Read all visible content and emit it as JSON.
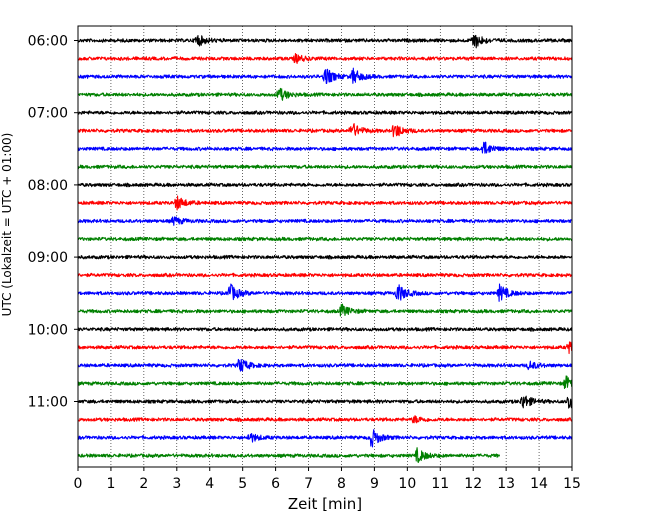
{
  "chart_data": {
    "type": "line",
    "title": "",
    "xlabel": "Zeit  [min]",
    "ylabel": "UTC (Lokalzeit = UTC + 01:00)",
    "xlim": [
      0,
      15
    ],
    "x_ticks": [
      "0",
      "1",
      "2",
      "3",
      "4",
      "5",
      "6",
      "7",
      "8",
      "9",
      "10",
      "11",
      "12",
      "13",
      "14",
      "15"
    ],
    "y_ticks": [
      "06:00",
      "07:00",
      "08:00",
      "09:00",
      "10:00",
      "11:00"
    ],
    "grid_x": true,
    "trace_interval_minutes": 15,
    "first_trace_time": "06:00",
    "trace_colors": [
      "#000000",
      "#ff0000",
      "#0000ff",
      "#008000"
    ],
    "series": [
      {
        "start": "06:00",
        "color": "#000000",
        "events": [
          {
            "t": 3.6,
            "amp": 0.45
          },
          {
            "t": 12.0,
            "amp": 0.65
          }
        ]
      },
      {
        "start": "06:15",
        "color": "#ff0000",
        "events": [
          {
            "t": 6.6,
            "amp": 0.3
          }
        ]
      },
      {
        "start": "06:30",
        "color": "#0000ff",
        "events": [
          {
            "t": 7.5,
            "amp": 0.65
          },
          {
            "t": 8.35,
            "amp": 0.55
          }
        ]
      },
      {
        "start": "06:45",
        "color": "#008000",
        "events": [
          {
            "t": 6.1,
            "amp": 0.5
          }
        ]
      },
      {
        "start": "07:00",
        "color": "#000000",
        "events": []
      },
      {
        "start": "07:15",
        "color": "#ff0000",
        "events": [
          {
            "t": 8.3,
            "amp": 0.6
          },
          {
            "t": 9.6,
            "amp": 0.55
          }
        ]
      },
      {
        "start": "07:30",
        "color": "#0000ff",
        "events": [
          {
            "t": 12.3,
            "amp": 0.55
          }
        ]
      },
      {
        "start": "07:45",
        "color": "#008000",
        "events": []
      },
      {
        "start": "08:00",
        "color": "#000000",
        "events": []
      },
      {
        "start": "08:15",
        "color": "#ff0000",
        "events": [
          {
            "t": 3.0,
            "amp": 0.5
          }
        ]
      },
      {
        "start": "08:30",
        "color": "#0000ff",
        "events": [
          {
            "t": 2.9,
            "amp": 0.3
          }
        ]
      },
      {
        "start": "08:45",
        "color": "#008000",
        "events": []
      },
      {
        "start": "09:00",
        "color": "#000000",
        "events": []
      },
      {
        "start": "09:15",
        "color": "#ff0000",
        "events": []
      },
      {
        "start": "09:30",
        "color": "#0000ff",
        "events": [
          {
            "t": 4.6,
            "amp": 0.7
          },
          {
            "t": 9.7,
            "amp": 0.7
          },
          {
            "t": 12.8,
            "amp": 0.6
          }
        ]
      },
      {
        "start": "09:45",
        "color": "#008000",
        "events": [
          {
            "t": 8.0,
            "amp": 0.45
          }
        ]
      },
      {
        "start": "10:00",
        "color": "#000000",
        "events": []
      },
      {
        "start": "10:15",
        "color": "#ff0000",
        "events": [
          {
            "t": 14.9,
            "amp": 0.4
          }
        ]
      },
      {
        "start": "10:30",
        "color": "#0000ff",
        "events": [
          {
            "t": 4.9,
            "amp": 0.55
          },
          {
            "t": 13.7,
            "amp": 0.3
          }
        ]
      },
      {
        "start": "10:45",
        "color": "#008000",
        "events": [
          {
            "t": 14.8,
            "amp": 0.5
          }
        ]
      },
      {
        "start": "11:00",
        "color": "#000000",
        "events": [
          {
            "t": 13.5,
            "amp": 0.55
          },
          {
            "t": 14.9,
            "amp": 0.6
          }
        ]
      },
      {
        "start": "11:15",
        "color": "#ff0000",
        "events": [
          {
            "t": 10.2,
            "amp": 0.25
          }
        ]
      },
      {
        "start": "11:30",
        "color": "#0000ff",
        "events": [
          {
            "t": 5.2,
            "amp": 0.35
          },
          {
            "t": 8.9,
            "amp": 0.7
          }
        ]
      },
      {
        "start": "11:45",
        "color": "#008000",
        "events": [
          {
            "t": 10.3,
            "amp": 0.5
          }
        ],
        "end_min": 12.8
      }
    ]
  }
}
